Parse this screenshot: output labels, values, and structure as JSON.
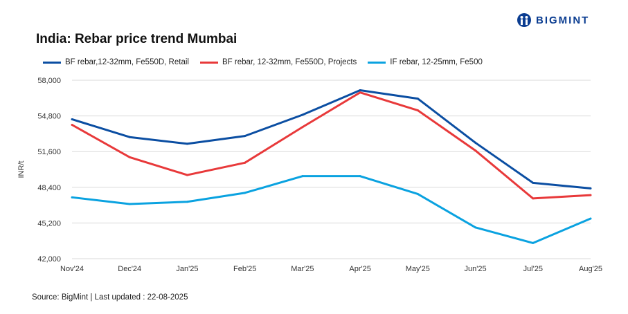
{
  "brand": "BIGMINT",
  "source": "Source: BigMint | Last updated : 22-08-2025",
  "chart_data": {
    "type": "line",
    "title": "India: Rebar price trend Mumbai",
    "xlabel": "",
    "ylabel": "INR/t",
    "ylim": [
      42000,
      58000
    ],
    "yticks": [
      "42,000",
      "45,200",
      "48,400",
      "51,600",
      "54,800",
      "58,000"
    ],
    "ytick_values": [
      42000,
      45200,
      48400,
      51600,
      54800,
      58000
    ],
    "categories": [
      "Nov'24",
      "Dec'24",
      "Jan'25",
      "Feb'25",
      "Mar'25",
      "Apr'25",
      "May'25",
      "Jun'25",
      "Jul'25",
      "Aug'25"
    ],
    "grid": true,
    "legend_position": "top",
    "series": [
      {
        "name": "BF rebar,12-32mm, Fe550D, Retail",
        "color": "#0b4ea2",
        "values": [
          54500,
          52900,
          52300,
          53000,
          54900,
          57100,
          56350,
          52400,
          48800,
          48300
        ]
      },
      {
        "name": "BF rebar, 12-32mm, Fe550D, Projects",
        "color": "#e8393a",
        "values": [
          54000,
          51100,
          49500,
          50600,
          53800,
          56900,
          55300,
          51700,
          47400,
          47700
        ]
      },
      {
        "name": "IF rebar, 12-25mm, Fe500",
        "color": "#0aa2e0",
        "values": [
          47500,
          46900,
          47100,
          47900,
          49400,
          49400,
          47800,
          44800,
          43400,
          45600
        ]
      }
    ]
  }
}
